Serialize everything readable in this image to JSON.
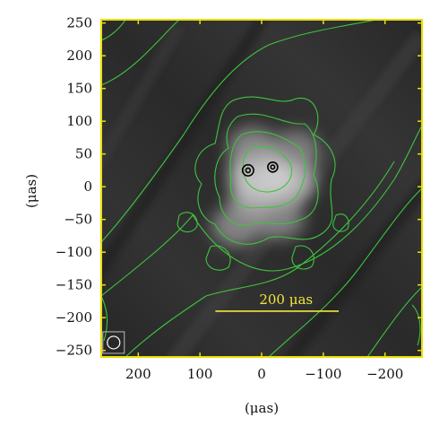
{
  "chart_data": {
    "type": "heatmap",
    "title": "",
    "xlabel": "(μas)",
    "ylabel": "(μas)",
    "xlim": [
      260,
      -260
    ],
    "ylim": [
      -260,
      255
    ],
    "x_ticks": [
      {
        "value": 200,
        "label": "200"
      },
      {
        "value": 100,
        "label": "100"
      },
      {
        "value": 0,
        "label": "0"
      },
      {
        "value": -100,
        "label": "−100"
      },
      {
        "value": -200,
        "label": "−200"
      }
    ],
    "y_ticks": [
      {
        "value": 250,
        "label": "250"
      },
      {
        "value": 200,
        "label": "200"
      },
      {
        "value": 150,
        "label": "150"
      },
      {
        "value": 100,
        "label": "100"
      },
      {
        "value": 50,
        "label": "50"
      },
      {
        "value": 0,
        "label": "0"
      },
      {
        "value": -50,
        "label": "−50"
      },
      {
        "value": -100,
        "label": "−100"
      },
      {
        "value": -150,
        "label": "−150"
      },
      {
        "value": -200,
        "label": "−200"
      },
      {
        "value": -250,
        "label": "−250"
      }
    ],
    "scale_bar": {
      "label": "200 μas",
      "length": 200,
      "x_start": 75,
      "y": -190
    },
    "beam": {
      "x": 240,
      "y": -238
    },
    "emission_peaks": [
      {
        "x": 0,
        "y": 18,
        "brightness": 1.0
      },
      {
        "x": -38,
        "y": 10,
        "brightness": 0.85
      },
      {
        "x": 5,
        "y": -15,
        "brightness": 0.7
      },
      {
        "x": 15,
        "y": 60,
        "brightness": 0.45
      },
      {
        "x": -55,
        "y": 55,
        "brightness": 0.4
      },
      {
        "x": 40,
        "y": -60,
        "brightness": 0.45
      },
      {
        "x": -30,
        "y": -50,
        "brightness": 0.4
      }
    ],
    "black_contours": [
      {
        "x": 22,
        "y": 25,
        "r": 9
      },
      {
        "x": -18,
        "y": 30,
        "r": 8
      }
    ],
    "colors": {
      "background": "#2b2b2b",
      "frame": "#e8e000",
      "contour": "#3ec43e",
      "scale_bar": "#f2e83a",
      "beam": "#ffffff"
    },
    "grid": false,
    "legend": "none"
  }
}
